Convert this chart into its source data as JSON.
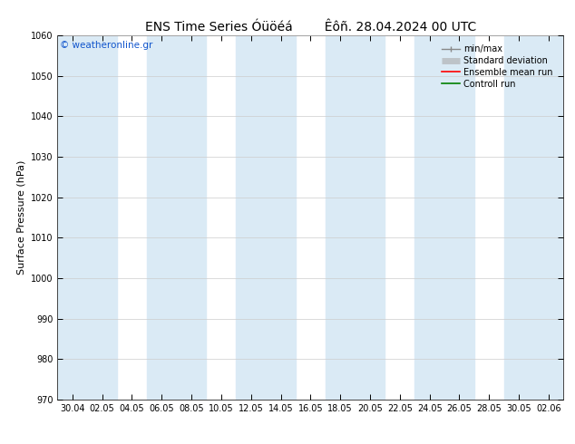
{
  "title": "ENS Time Series Óüöéá        Êôñ. 28.04.2024 00 UTC",
  "ylabel": "Surface Pressure (hPa)",
  "ylim": [
    970,
    1060
  ],
  "yticks": [
    970,
    980,
    990,
    1000,
    1010,
    1020,
    1030,
    1040,
    1050,
    1060
  ],
  "xtick_labels": [
    "30.04",
    "02.05",
    "04.05",
    "06.05",
    "08.05",
    "10.05",
    "12.05",
    "14.05",
    "16.05",
    "18.05",
    "20.05",
    "22.05",
    "24.05",
    "26.05",
    "28.05",
    "30.05",
    "02.06"
  ],
  "watermark": "© weatheronline.gr",
  "bg_color": "#ffffff",
  "band_color": "#daeaf5",
  "fig_bg": "#ffffff",
  "legend_items": [
    "min/max",
    "Standard deviation",
    "Ensemble mean run",
    "Controll run"
  ],
  "legend_colors": [
    "#888888",
    "#aaaaaa",
    "#ff0000",
    "#008000"
  ],
  "title_fontsize": 10,
  "tick_fontsize": 7,
  "ylabel_fontsize": 8,
  "band_indices": [
    0,
    2,
    4,
    6,
    8,
    10,
    12,
    14,
    16
  ]
}
